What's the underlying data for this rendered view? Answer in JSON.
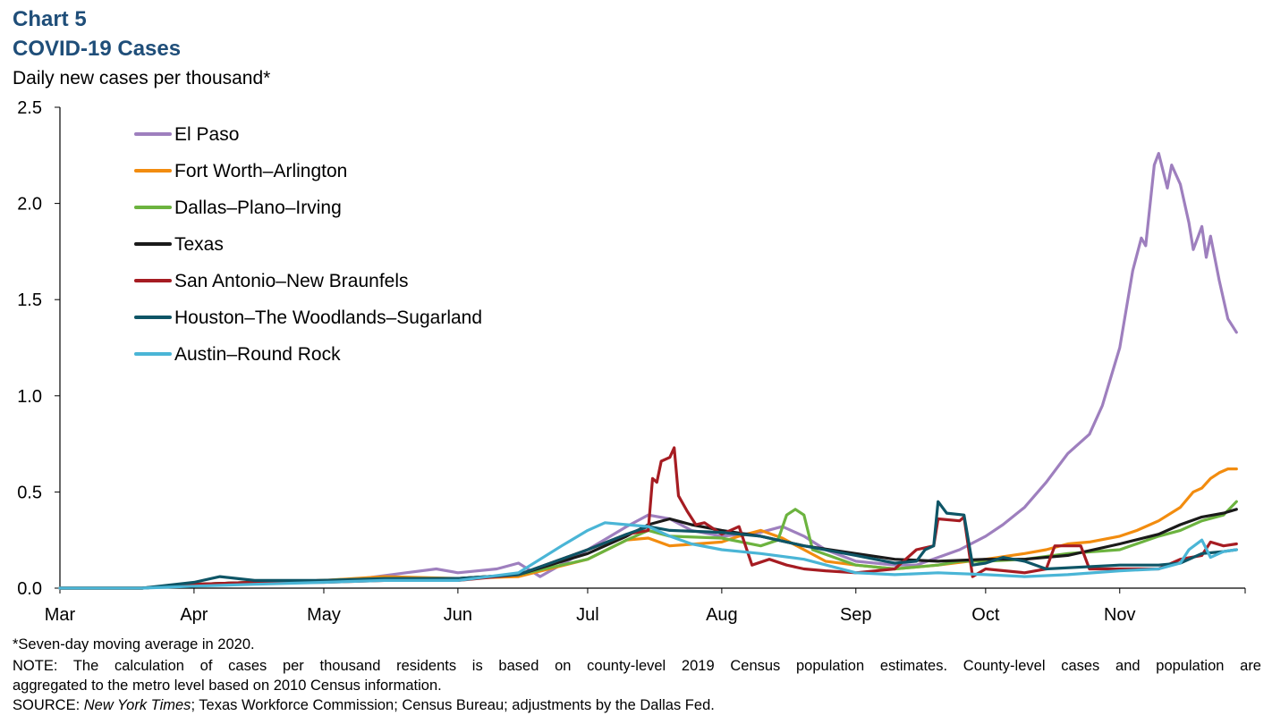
{
  "header": {
    "chart_number": "Chart 5",
    "title": "COVID-19 Cases",
    "ylabel": "Daily new cases per thousand*"
  },
  "footer": {
    "note1": "*Seven-day moving average in 2020.",
    "note2a": "NOTE: The calculation of cases per thousand residents is based on county-level 2019 Census population estimates. County-level cases and population are",
    "note2b": "aggregated to the metro level based on 2010 Census information.",
    "source_prefix": "SOURCE: ",
    "source_italic": "New York Times",
    "source_rest": "; Texas Workforce Commission; Census Bureau; adjustments by the Dallas Fed."
  },
  "chart_data": {
    "type": "line",
    "title": "COVID-19 Cases",
    "ylabel": "Daily new cases per thousand*",
    "ylim": [
      0,
      2.5
    ],
    "yticks": [
      "0.0",
      "0.5",
      "1.0",
      "1.5",
      "2.0",
      "2.5"
    ],
    "ytick_values": [
      0,
      0.5,
      1.0,
      1.5,
      2.0,
      2.5
    ],
    "x_categories": [
      "Mar",
      "Apr",
      "May",
      "Jun",
      "Jul",
      "Aug",
      "Sep",
      "Oct",
      "Nov"
    ],
    "x_domain": [
      "2020-03-01",
      "2020-11-30"
    ],
    "grid": false,
    "legend_position": "top-left",
    "series": [
      {
        "name": "El Paso",
        "color": "#9e7fbe",
        "points": [
          [
            "2020-03-01",
            0
          ],
          [
            "2020-03-20",
            0
          ],
          [
            "2020-04-01",
            0.02
          ],
          [
            "2020-04-15",
            0.03
          ],
          [
            "2020-05-01",
            0.04
          ],
          [
            "2020-05-10",
            0.05
          ],
          [
            "2020-05-20",
            0.08
          ],
          [
            "2020-05-27",
            0.1
          ],
          [
            "2020-06-01",
            0.08
          ],
          [
            "2020-06-10",
            0.1
          ],
          [
            "2020-06-15",
            0.13
          ],
          [
            "2020-06-20",
            0.06
          ],
          [
            "2020-07-01",
            0.2
          ],
          [
            "2020-07-10",
            0.32
          ],
          [
            "2020-07-15",
            0.38
          ],
          [
            "2020-07-20",
            0.36
          ],
          [
            "2020-07-25",
            0.3
          ],
          [
            "2020-08-01",
            0.27
          ],
          [
            "2020-08-10",
            0.29
          ],
          [
            "2020-08-15",
            0.32
          ],
          [
            "2020-08-20",
            0.27
          ],
          [
            "2020-08-25",
            0.2
          ],
          [
            "2020-09-01",
            0.14
          ],
          [
            "2020-09-10",
            0.12
          ],
          [
            "2020-09-15",
            0.12
          ],
          [
            "2020-09-20",
            0.16
          ],
          [
            "2020-09-25",
            0.2
          ],
          [
            "2020-10-01",
            0.27
          ],
          [
            "2020-10-05",
            0.33
          ],
          [
            "2020-10-10",
            0.42
          ],
          [
            "2020-10-15",
            0.55
          ],
          [
            "2020-10-20",
            0.7
          ],
          [
            "2020-10-25",
            0.8
          ],
          [
            "2020-10-28",
            0.95
          ],
          [
            "2020-11-01",
            1.25
          ],
          [
            "2020-11-04",
            1.65
          ],
          [
            "2020-11-06",
            1.82
          ],
          [
            "2020-11-07",
            1.78
          ],
          [
            "2020-11-09",
            2.2
          ],
          [
            "2020-11-10",
            2.26
          ],
          [
            "2020-11-12",
            2.08
          ],
          [
            "2020-11-13",
            2.2
          ],
          [
            "2020-11-15",
            2.1
          ],
          [
            "2020-11-17",
            1.9
          ],
          [
            "2020-11-18",
            1.76
          ],
          [
            "2020-11-20",
            1.88
          ],
          [
            "2020-11-21",
            1.72
          ],
          [
            "2020-11-22",
            1.83
          ],
          [
            "2020-11-24",
            1.6
          ],
          [
            "2020-11-26",
            1.4
          ],
          [
            "2020-11-28",
            1.33
          ]
        ]
      },
      {
        "name": "Fort Worth–Arlington",
        "color": "#f28c0f",
        "points": [
          [
            "2020-03-01",
            0
          ],
          [
            "2020-03-20",
            0
          ],
          [
            "2020-04-01",
            0.02
          ],
          [
            "2020-04-15",
            0.03
          ],
          [
            "2020-05-01",
            0.04
          ],
          [
            "2020-05-15",
            0.06
          ],
          [
            "2020-06-01",
            0.05
          ],
          [
            "2020-06-15",
            0.06
          ],
          [
            "2020-07-01",
            0.15
          ],
          [
            "2020-07-10",
            0.25
          ],
          [
            "2020-07-15",
            0.26
          ],
          [
            "2020-07-20",
            0.22
          ],
          [
            "2020-08-01",
            0.24
          ],
          [
            "2020-08-05",
            0.27
          ],
          [
            "2020-08-10",
            0.3
          ],
          [
            "2020-08-15",
            0.26
          ],
          [
            "2020-08-20",
            0.2
          ],
          [
            "2020-08-25",
            0.14
          ],
          [
            "2020-09-01",
            0.12
          ],
          [
            "2020-09-10",
            0.1
          ],
          [
            "2020-09-20",
            0.12
          ],
          [
            "2020-10-01",
            0.15
          ],
          [
            "2020-10-10",
            0.18
          ],
          [
            "2020-10-15",
            0.2
          ],
          [
            "2020-10-20",
            0.23
          ],
          [
            "2020-10-25",
            0.24
          ],
          [
            "2020-11-01",
            0.27
          ],
          [
            "2020-11-05",
            0.3
          ],
          [
            "2020-11-10",
            0.35
          ],
          [
            "2020-11-15",
            0.42
          ],
          [
            "2020-11-18",
            0.5
          ],
          [
            "2020-11-20",
            0.52
          ],
          [
            "2020-11-22",
            0.57
          ],
          [
            "2020-11-24",
            0.6
          ],
          [
            "2020-11-26",
            0.62
          ],
          [
            "2020-11-28",
            0.62
          ]
        ]
      },
      {
        "name": "Dallas–Plano–Irving",
        "color": "#6cb33f",
        "points": [
          [
            "2020-03-01",
            0
          ],
          [
            "2020-03-20",
            0
          ],
          [
            "2020-04-01",
            0.02
          ],
          [
            "2020-04-15",
            0.03
          ],
          [
            "2020-05-01",
            0.04
          ],
          [
            "2020-05-15",
            0.05
          ],
          [
            "2020-06-01",
            0.05
          ],
          [
            "2020-06-15",
            0.07
          ],
          [
            "2020-07-01",
            0.15
          ],
          [
            "2020-07-10",
            0.25
          ],
          [
            "2020-07-15",
            0.3
          ],
          [
            "2020-07-20",
            0.27
          ],
          [
            "2020-08-01",
            0.26
          ],
          [
            "2020-08-10",
            0.22
          ],
          [
            "2020-08-14",
            0.25
          ],
          [
            "2020-08-16",
            0.38
          ],
          [
            "2020-08-18",
            0.41
          ],
          [
            "2020-08-20",
            0.38
          ],
          [
            "2020-08-22",
            0.2
          ],
          [
            "2020-09-01",
            0.12
          ],
          [
            "2020-09-10",
            0.1
          ],
          [
            "2020-09-20",
            0.12
          ],
          [
            "2020-09-25",
            0.14
          ],
          [
            "2020-10-01",
            0.14
          ],
          [
            "2020-10-10",
            0.15
          ],
          [
            "2020-10-20",
            0.18
          ],
          [
            "2020-11-01",
            0.2
          ],
          [
            "2020-11-10",
            0.27
          ],
          [
            "2020-11-15",
            0.3
          ],
          [
            "2020-11-20",
            0.35
          ],
          [
            "2020-11-25",
            0.38
          ],
          [
            "2020-11-28",
            0.45
          ]
        ]
      },
      {
        "name": "Texas",
        "color": "#1a1a1a",
        "points": [
          [
            "2020-03-01",
            0
          ],
          [
            "2020-03-20",
            0
          ],
          [
            "2020-04-01",
            0.02
          ],
          [
            "2020-04-15",
            0.03
          ],
          [
            "2020-05-01",
            0.04
          ],
          [
            "2020-05-15",
            0.045
          ],
          [
            "2020-06-01",
            0.05
          ],
          [
            "2020-06-15",
            0.07
          ],
          [
            "2020-07-01",
            0.18
          ],
          [
            "2020-07-10",
            0.27
          ],
          [
            "2020-07-15",
            0.33
          ],
          [
            "2020-07-20",
            0.36
          ],
          [
            "2020-07-25",
            0.33
          ],
          [
            "2020-08-01",
            0.3
          ],
          [
            "2020-08-10",
            0.27
          ],
          [
            "2020-08-20",
            0.22
          ],
          [
            "2020-09-01",
            0.18
          ],
          [
            "2020-09-10",
            0.15
          ],
          [
            "2020-09-20",
            0.14
          ],
          [
            "2020-10-01",
            0.15
          ],
          [
            "2020-10-10",
            0.15
          ],
          [
            "2020-10-20",
            0.17
          ],
          [
            "2020-11-01",
            0.23
          ],
          [
            "2020-11-10",
            0.28
          ],
          [
            "2020-11-15",
            0.33
          ],
          [
            "2020-11-20",
            0.37
          ],
          [
            "2020-11-25",
            0.39
          ],
          [
            "2020-11-28",
            0.41
          ]
        ]
      },
      {
        "name": "San Antonio–New Braunfels",
        "color": "#a61c22",
        "points": [
          [
            "2020-03-01",
            0
          ],
          [
            "2020-03-20",
            0
          ],
          [
            "2020-04-01",
            0.02
          ],
          [
            "2020-04-15",
            0.03
          ],
          [
            "2020-05-01",
            0.03
          ],
          [
            "2020-05-15",
            0.04
          ],
          [
            "2020-06-01",
            0.04
          ],
          [
            "2020-06-15",
            0.07
          ],
          [
            "2020-07-01",
            0.2
          ],
          [
            "2020-07-10",
            0.28
          ],
          [
            "2020-07-15",
            0.3
          ],
          [
            "2020-07-16",
            0.57
          ],
          [
            "2020-07-17",
            0.55
          ],
          [
            "2020-07-18",
            0.66
          ],
          [
            "2020-07-20",
            0.68
          ],
          [
            "2020-07-21",
            0.73
          ],
          [
            "2020-07-22",
            0.48
          ],
          [
            "2020-07-24",
            0.4
          ],
          [
            "2020-07-26",
            0.33
          ],
          [
            "2020-07-28",
            0.34
          ],
          [
            "2020-08-01",
            0.28
          ],
          [
            "2020-08-05",
            0.32
          ],
          [
            "2020-08-08",
            0.12
          ],
          [
            "2020-08-12",
            0.15
          ],
          [
            "2020-08-16",
            0.12
          ],
          [
            "2020-08-20",
            0.1
          ],
          [
            "2020-08-25",
            0.09
          ],
          [
            "2020-09-01",
            0.08
          ],
          [
            "2020-09-10",
            0.1
          ],
          [
            "2020-09-15",
            0.2
          ],
          [
            "2020-09-19",
            0.22
          ],
          [
            "2020-09-20",
            0.36
          ],
          [
            "2020-09-25",
            0.35
          ],
          [
            "2020-09-26",
            0.37
          ],
          [
            "2020-09-28",
            0.06
          ],
          [
            "2020-10-01",
            0.1
          ],
          [
            "2020-10-10",
            0.08
          ],
          [
            "2020-10-15",
            0.1
          ],
          [
            "2020-10-17",
            0.22
          ],
          [
            "2020-10-23",
            0.22
          ],
          [
            "2020-10-25",
            0.1
          ],
          [
            "2020-11-01",
            0.1
          ],
          [
            "2020-11-10",
            0.1
          ],
          [
            "2020-11-15",
            0.15
          ],
          [
            "2020-11-20",
            0.17
          ],
          [
            "2020-11-22",
            0.24
          ],
          [
            "2020-11-25",
            0.22
          ],
          [
            "2020-11-28",
            0.23
          ]
        ]
      },
      {
        "name": "Houston–The Woodlands–Sugarland",
        "color": "#0e5566",
        "points": [
          [
            "2020-03-01",
            0
          ],
          [
            "2020-03-20",
            0
          ],
          [
            "2020-04-01",
            0.03
          ],
          [
            "2020-04-07",
            0.06
          ],
          [
            "2020-04-15",
            0.04
          ],
          [
            "2020-05-01",
            0.04
          ],
          [
            "2020-05-15",
            0.05
          ],
          [
            "2020-06-01",
            0.05
          ],
          [
            "2020-06-15",
            0.07
          ],
          [
            "2020-07-01",
            0.2
          ],
          [
            "2020-07-10",
            0.28
          ],
          [
            "2020-07-15",
            0.32
          ],
          [
            "2020-07-20",
            0.3
          ],
          [
            "2020-08-01",
            0.29
          ],
          [
            "2020-08-10",
            0.27
          ],
          [
            "2020-08-20",
            0.22
          ],
          [
            "2020-09-01",
            0.17
          ],
          [
            "2020-09-10",
            0.13
          ],
          [
            "2020-09-15",
            0.14
          ],
          [
            "2020-09-17",
            0.2
          ],
          [
            "2020-09-19",
            0.22
          ],
          [
            "2020-09-20",
            0.45
          ],
          [
            "2020-09-22",
            0.39
          ],
          [
            "2020-09-26",
            0.38
          ],
          [
            "2020-09-28",
            0.12
          ],
          [
            "2020-10-01",
            0.13
          ],
          [
            "2020-10-05",
            0.16
          ],
          [
            "2020-10-10",
            0.14
          ],
          [
            "2020-10-15",
            0.1
          ],
          [
            "2020-11-01",
            0.12
          ],
          [
            "2020-11-10",
            0.12
          ],
          [
            "2020-11-15",
            0.13
          ],
          [
            "2020-11-20",
            0.18
          ],
          [
            "2020-11-25",
            0.19
          ],
          [
            "2020-11-28",
            0.2
          ]
        ]
      },
      {
        "name": "Austin–Round Rock",
        "color": "#4ab5d6",
        "points": [
          [
            "2020-03-01",
            0
          ],
          [
            "2020-03-20",
            0
          ],
          [
            "2020-04-01",
            0.01
          ],
          [
            "2020-04-15",
            0.02
          ],
          [
            "2020-05-01",
            0.03
          ],
          [
            "2020-05-15",
            0.04
          ],
          [
            "2020-06-01",
            0.04
          ],
          [
            "2020-06-15",
            0.08
          ],
          [
            "2020-06-25",
            0.22
          ],
          [
            "2020-07-01",
            0.3
          ],
          [
            "2020-07-05",
            0.34
          ],
          [
            "2020-07-10",
            0.33
          ],
          [
            "2020-07-15",
            0.32
          ],
          [
            "2020-07-20",
            0.27
          ],
          [
            "2020-07-25",
            0.23
          ],
          [
            "2020-08-01",
            0.2
          ],
          [
            "2020-08-10",
            0.18
          ],
          [
            "2020-08-20",
            0.15
          ],
          [
            "2020-09-01",
            0.08
          ],
          [
            "2020-09-10",
            0.07
          ],
          [
            "2020-09-20",
            0.08
          ],
          [
            "2020-10-01",
            0.07
          ],
          [
            "2020-10-10",
            0.06
          ],
          [
            "2020-10-20",
            0.07
          ],
          [
            "2020-11-01",
            0.09
          ],
          [
            "2020-11-10",
            0.1
          ],
          [
            "2020-11-15",
            0.13
          ],
          [
            "2020-11-17",
            0.2
          ],
          [
            "2020-11-20",
            0.25
          ],
          [
            "2020-11-22",
            0.16
          ],
          [
            "2020-11-25",
            0.19
          ],
          [
            "2020-11-28",
            0.2
          ]
        ]
      }
    ]
  }
}
